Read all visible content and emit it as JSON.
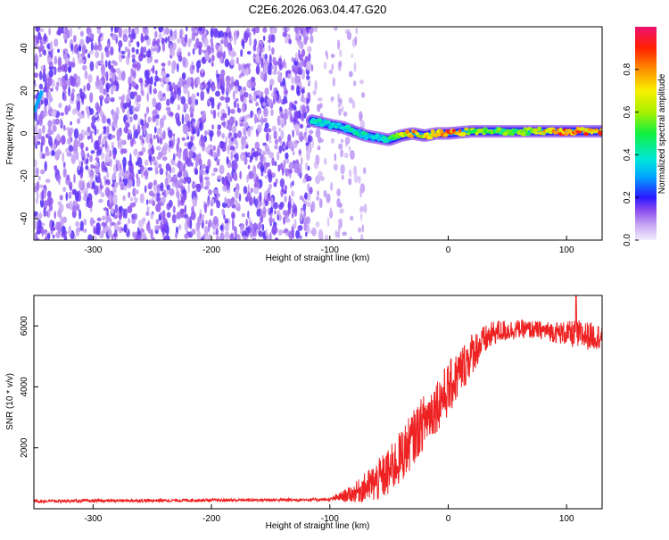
{
  "title": "C2E6.2026.063.04.47.G20",
  "chart_data": [
    {
      "type": "heatmap",
      "name": "spectrogram",
      "xlabel": "Height of straight line (km)",
      "ylabel": "Frequency (Hz)",
      "xlim": [
        -350,
        130
      ],
      "ylim": [
        -50,
        50
      ],
      "xticks": [
        -300,
        -200,
        -100,
        0,
        100
      ],
      "xtick_labels": [
        "-300",
        "-200",
        "-100",
        "0",
        "100"
      ],
      "yticks": [
        -40,
        -20,
        0,
        20,
        40
      ],
      "ytick_labels": [
        "-40",
        "-20",
        "0",
        "20",
        "40"
      ],
      "colorbar": {
        "label": "Normalized spectral amplitude",
        "range": [
          0,
          1
        ],
        "ticks": [
          0.0,
          0.2,
          0.4,
          0.6,
          0.8
        ],
        "tick_labels": [
          "0.0",
          "0.2",
          "0.4",
          "0.6",
          "0.8"
        ]
      },
      "ridge": {
        "description": "signal ridge frequency vs height",
        "x": [
          -115,
          -100,
          -90,
          -80,
          -70,
          -60,
          -50,
          -40,
          -30,
          -20,
          -10,
          0,
          20,
          40,
          60,
          80,
          100,
          130
        ],
        "freq": [
          6,
          4,
          3,
          1,
          -1,
          -2,
          -3,
          -1,
          0,
          -1,
          0,
          0,
          1,
          1,
          1,
          1,
          1,
          1
        ],
        "amplitude": [
          0.45,
          0.35,
          0.4,
          0.45,
          0.4,
          0.35,
          0.5,
          0.7,
          0.85,
          0.7,
          0.8,
          0.95,
          0.6,
          0.55,
          0.55,
          0.75,
          0.9,
          0.85
        ]
      },
      "noise_region_x": [
        -350,
        -115
      ]
    },
    {
      "type": "line",
      "name": "snr",
      "xlabel": "Height of straight line (km)",
      "ylabel": "SNR (10 * v/v)",
      "xlim": [
        -350,
        130
      ],
      "ylim": [
        0,
        7000
      ],
      "xticks": [
        -300,
        -200,
        -100,
        0,
        100
      ],
      "xtick_labels": [
        "-300",
        "-200",
        "-100",
        "0",
        "100"
      ],
      "yticks": [
        2000,
        4000,
        6000
      ],
      "ytick_labels": [
        "2000",
        "4000",
        "6000"
      ],
      "color": "#ee2222",
      "envelope": {
        "x": [
          -350,
          -100,
          -80,
          -60,
          -50,
          -40,
          -30,
          -20,
          -10,
          0,
          10,
          20,
          30,
          40,
          60,
          80,
          100,
          110,
          130
        ],
        "y": [
          250,
          300,
          500,
          900,
          1200,
          1700,
          2300,
          2900,
          3400,
          3900,
          4500,
          5100,
          5500,
          5800,
          5900,
          5850,
          5750,
          5700,
          5650
        ]
      },
      "noise_amplitude": [
        50,
        50,
        300,
        700,
        800,
        900,
        900,
        900,
        900,
        900,
        800,
        700,
        500,
        400,
        300,
        300,
        400,
        500,
        400
      ],
      "peak": {
        "x": 108,
        "y": 7000
      }
    }
  ]
}
